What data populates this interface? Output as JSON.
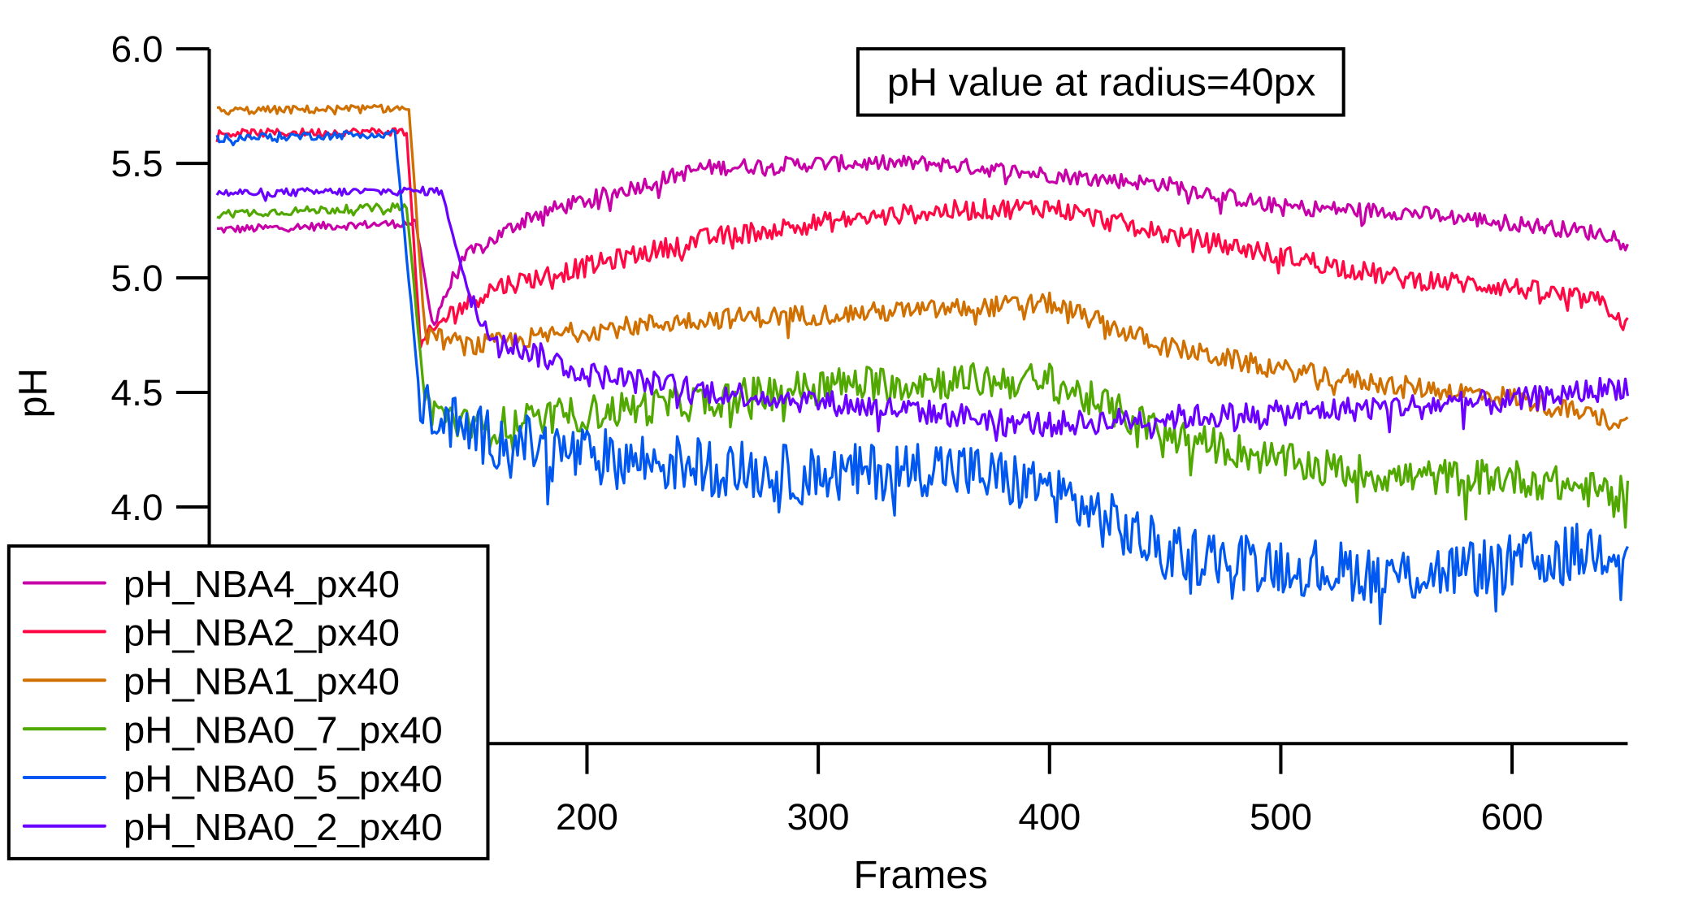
{
  "chart_data": {
    "type": "line",
    "title": "pH value at radius=40px",
    "xlabel": "Frames",
    "ylabel": "pH",
    "xlim": [
      0,
      650
    ],
    "ylim": [
      3.6,
      6.0
    ],
    "x_ticks": [
      "200",
      "300",
      "400",
      "500",
      "600"
    ],
    "y_ticks": [
      "4.0",
      "4.5",
      "5.0",
      "5.5",
      "6.0"
    ],
    "grid": false,
    "legend_position": "bottom-left",
    "series": [
      {
        "name": "pH_NBA4_px40",
        "color": "#c800a8",
        "points": [
          [
            40,
            5.21
          ],
          [
            126,
            5.24
          ],
          [
            133,
            4.8
          ],
          [
            146,
            5.08
          ],
          [
            175,
            5.27
          ],
          [
            200,
            5.34
          ],
          [
            250,
            5.48
          ],
          [
            300,
            5.5
          ],
          [
            350,
            5.5
          ],
          [
            400,
            5.45
          ],
          [
            450,
            5.41
          ],
          [
            500,
            5.31
          ],
          [
            550,
            5.29
          ],
          [
            600,
            5.24
          ],
          [
            650,
            5.18
          ]
        ]
      },
      {
        "name": "pH_NBA2_px40",
        "color": "#ff0844",
        "points": [
          [
            40,
            5.63
          ],
          [
            122,
            5.64
          ],
          [
            128,
            4.7
          ],
          [
            140,
            4.84
          ],
          [
            160,
            4.96
          ],
          [
            200,
            5.05
          ],
          [
            250,
            5.17
          ],
          [
            300,
            5.24
          ],
          [
            350,
            5.29
          ],
          [
            400,
            5.31
          ],
          [
            450,
            5.19
          ],
          [
            500,
            5.1
          ],
          [
            550,
            5.0
          ],
          [
            600,
            4.96
          ],
          [
            640,
            4.89
          ],
          [
            650,
            4.79
          ]
        ]
      },
      {
        "name": "pH_NBA1_px40",
        "color": "#d07000",
        "points": [
          [
            40,
            5.73
          ],
          [
            123,
            5.74
          ],
          [
            130,
            4.75
          ],
          [
            150,
            4.7
          ],
          [
            200,
            4.77
          ],
          [
            250,
            4.82
          ],
          [
            300,
            4.84
          ],
          [
            350,
            4.86
          ],
          [
            400,
            4.89
          ],
          [
            450,
            4.7
          ],
          [
            500,
            4.6
          ],
          [
            550,
            4.53
          ],
          [
            600,
            4.48
          ],
          [
            650,
            4.36
          ]
        ]
      },
      {
        "name": "pH_NBA0_7_px40",
        "color": "#50a800",
        "points": [
          [
            40,
            5.28
          ],
          [
            122,
            5.31
          ],
          [
            130,
            4.45
          ],
          [
            150,
            4.34
          ],
          [
            200,
            4.41
          ],
          [
            250,
            4.46
          ],
          [
            300,
            4.53
          ],
          [
            350,
            4.55
          ],
          [
            400,
            4.55
          ],
          [
            450,
            4.32
          ],
          [
            500,
            4.2
          ],
          [
            550,
            4.13
          ],
          [
            600,
            4.13
          ],
          [
            650,
            4.05
          ]
        ]
      },
      {
        "name": "pH_NBA0_5_px40",
        "color": "#0058f0",
        "points": [
          [
            40,
            5.61
          ],
          [
            117,
            5.63
          ],
          [
            128,
            4.45
          ],
          [
            150,
            4.32
          ],
          [
            200,
            4.22
          ],
          [
            250,
            4.18
          ],
          [
            300,
            4.13
          ],
          [
            350,
            4.18
          ],
          [
            400,
            4.08
          ],
          [
            450,
            3.8
          ],
          [
            500,
            3.75
          ],
          [
            550,
            3.7
          ],
          [
            600,
            3.75
          ],
          [
            650,
            3.84
          ]
        ]
      },
      {
        "name": "pH_NBA0_2_px40",
        "color": "#6a00ff",
        "points": [
          [
            40,
            5.37
          ],
          [
            137,
            5.38
          ],
          [
            150,
            4.89
          ],
          [
            160,
            4.74
          ],
          [
            200,
            4.58
          ],
          [
            250,
            4.51
          ],
          [
            300,
            4.46
          ],
          [
            350,
            4.41
          ],
          [
            400,
            4.36
          ],
          [
            450,
            4.39
          ],
          [
            500,
            4.41
          ],
          [
            550,
            4.44
          ],
          [
            600,
            4.46
          ],
          [
            650,
            4.53
          ]
        ]
      }
    ]
  }
}
